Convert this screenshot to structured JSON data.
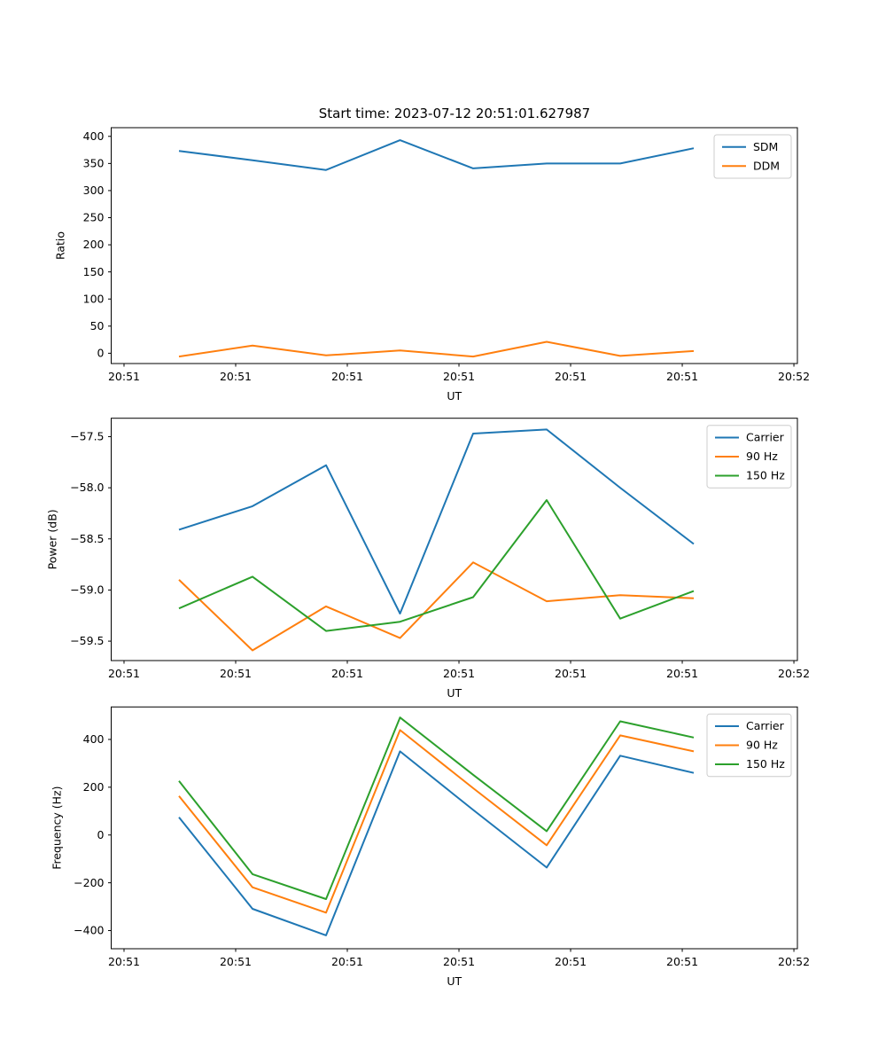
{
  "figure": {
    "title": "Start time: 2023-07-12 20:51:01.627987",
    "background_color": "#ffffff",
    "text_color": "#000000"
  },
  "colors": {
    "blue": "#1f77b4",
    "orange": "#ff7f0e",
    "green": "#2ca02c",
    "axis": "#000000",
    "legend_border": "#cccccc"
  },
  "x_axis": {
    "label": "UT",
    "tick_labels": [
      "20:51",
      "20:51",
      "20:51",
      "20:51",
      "20:51",
      "20:51",
      "20:52"
    ]
  },
  "chart_data": [
    {
      "type": "line",
      "title": "",
      "xlabel": "UT",
      "ylabel": "Ratio",
      "ylim": [
        -19,
        416
      ],
      "grid": false,
      "legend_position": "upper right",
      "x_tick_labels": [
        "20:51",
        "20:51",
        "20:51",
        "20:51",
        "20:51",
        "20:51",
        "20:52"
      ],
      "y_tick_values": [
        0,
        50,
        100,
        150,
        200,
        250,
        300,
        350,
        400
      ],
      "y_tick_labels": [
        "0",
        "50",
        "100",
        "150",
        "200",
        "250",
        "300",
        "350",
        "400"
      ],
      "series": [
        {
          "name": "SDM",
          "color": "#1f77b4",
          "values": [
            373,
            356,
            338,
            393,
            341,
            350,
            350,
            378
          ]
        },
        {
          "name": "DDM",
          "color": "#ff7f0e",
          "values": [
            -6,
            14,
            -4,
            5,
            -6,
            21,
            -5,
            4
          ]
        }
      ]
    },
    {
      "type": "line",
      "title": "",
      "xlabel": "UT",
      "ylabel": "Power (dB)",
      "ylim": [
        -59.69,
        -57.32
      ],
      "grid": false,
      "legend_position": "upper right",
      "x_tick_labels": [
        "20:51",
        "20:51",
        "20:51",
        "20:51",
        "20:51",
        "20:51",
        "20:52"
      ],
      "y_tick_values": [
        -59.5,
        -59.0,
        -58.5,
        -58.0,
        -57.5
      ],
      "y_tick_labels": [
        "−59.5",
        "−59.0",
        "−58.5",
        "−58.0",
        "−57.5"
      ],
      "series": [
        {
          "name": "Carrier",
          "color": "#1f77b4",
          "values": [
            -58.41,
            -58.18,
            -57.78,
            -59.23,
            -57.47,
            -57.43,
            -58.0,
            -58.55
          ]
        },
        {
          "name": "90 Hz",
          "color": "#ff7f0e",
          "values": [
            -58.9,
            -59.59,
            -59.16,
            -59.47,
            -58.73,
            -59.11,
            -59.05,
            -59.08
          ]
        },
        {
          "name": "150 Hz",
          "color": "#2ca02c",
          "values": [
            -59.18,
            -58.87,
            -59.4,
            -59.31,
            -59.07,
            -58.12,
            -59.28,
            -59.01
          ]
        }
      ]
    },
    {
      "type": "line",
      "title": "",
      "xlabel": "UT",
      "ylabel": "Frequency (Hz)",
      "ylim": [
        -476,
        536
      ],
      "grid": false,
      "legend_position": "upper right",
      "x_tick_labels": [
        "20:51",
        "20:51",
        "20:51",
        "20:51",
        "20:51",
        "20:51",
        "20:52"
      ],
      "y_tick_values": [
        -400,
        -200,
        0,
        200,
        400
      ],
      "y_tick_labels": [
        "−400",
        "−200",
        "0",
        "200",
        "400"
      ],
      "series": [
        {
          "name": "Carrier",
          "color": "#1f77b4",
          "values": [
            74,
            -309,
            -420,
            350,
            105,
            -136,
            332,
            260
          ]
        },
        {
          "name": "90 Hz",
          "color": "#ff7f0e",
          "values": [
            163,
            -219,
            -325,
            439,
            196,
            -43,
            417,
            350
          ]
        },
        {
          "name": "150 Hz",
          "color": "#2ca02c",
          "values": [
            226,
            -164,
            -268,
            492,
            252,
            16,
            476,
            408
          ]
        }
      ]
    }
  ]
}
